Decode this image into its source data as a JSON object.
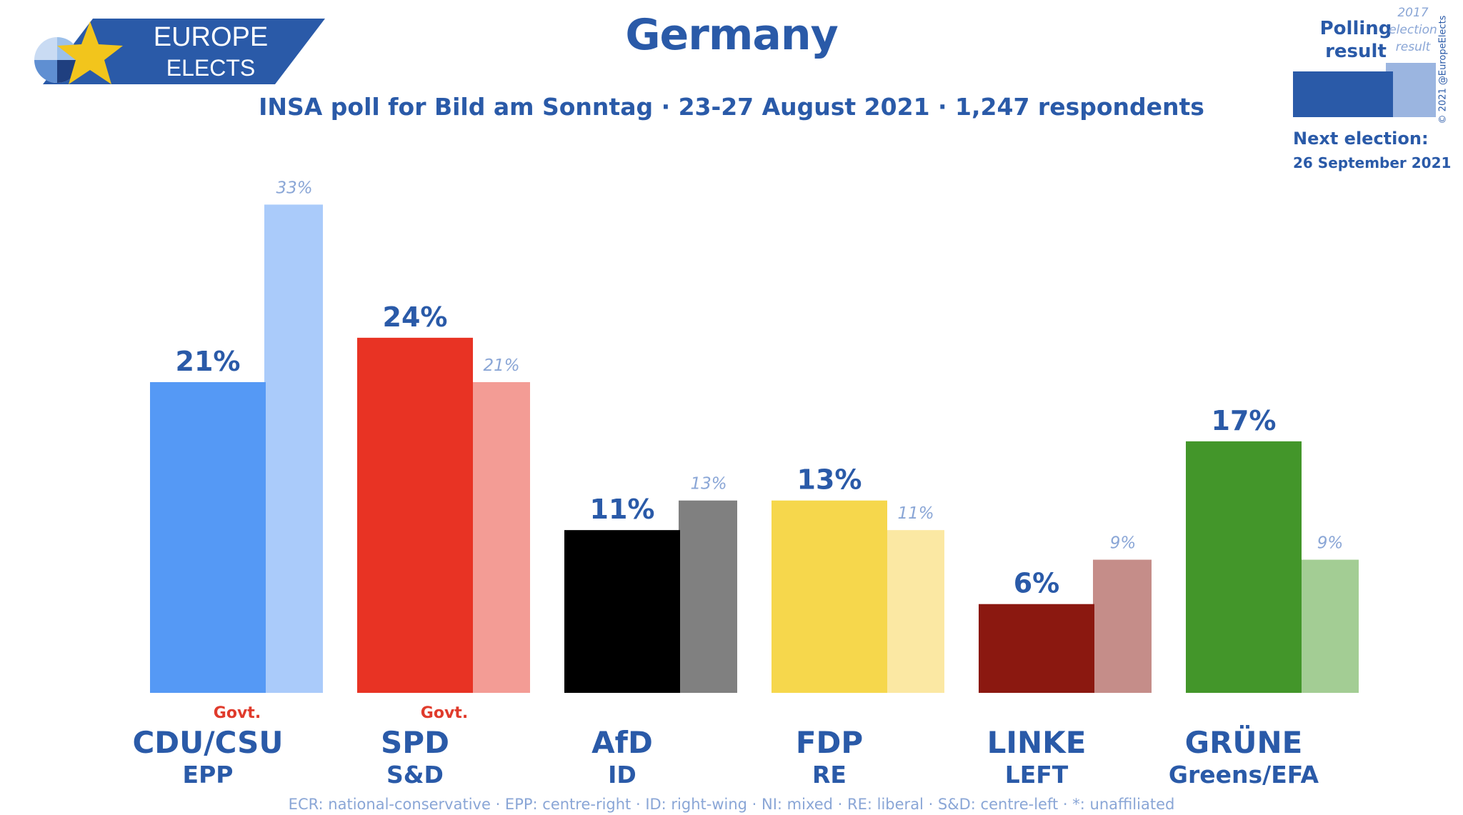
{
  "logo": {
    "line1": "EUROPE",
    "line2": "ELECTS"
  },
  "title": "Germany",
  "subtitle": "INSA poll for Bild am Sonntag · 23-27 August 2021 · 1,247 respondents",
  "legend": {
    "polling_label": "Polling result",
    "previous_label": "2017 election result",
    "copyright": "© 2021 @EuropeElects",
    "next_election_label": "Next election:",
    "next_election_date": "26 September 2021"
  },
  "colors": {
    "brand": "#2a5aa8",
    "prev_label": "#8aa6d6",
    "govt": "#e03b2c"
  },
  "chart_data": {
    "type": "bar",
    "title": "Germany",
    "xlabel": "",
    "ylabel": "",
    "ylim": [
      0,
      35
    ],
    "grid": false,
    "legend": "top-right",
    "categories": [
      "CDU/CSU",
      "SPD",
      "AfD",
      "FDP",
      "LINKE",
      "GRÜNE"
    ],
    "groups": [
      "EPP",
      "S&D",
      "ID",
      "RE",
      "LEFT",
      "Greens/EFA"
    ],
    "govt": [
      true,
      true,
      false,
      false,
      false,
      false
    ],
    "govt_label": "Govt.",
    "series": [
      {
        "name": "Polling result",
        "values": [
          21,
          24,
          11,
          13,
          6,
          17
        ],
        "labels": [
          "21%",
          "24%",
          "11%",
          "13%",
          "6%",
          "17%"
        ],
        "colors": [
          "#5599f5",
          "#e83324",
          "#000000",
          "#f6d74c",
          "#8b1810",
          "#43962a"
        ]
      },
      {
        "name": "2017 election result",
        "values": [
          33,
          21,
          13,
          11,
          9,
          9
        ],
        "labels": [
          "33%",
          "21%",
          "13%",
          "11%",
          "9%",
          "9%"
        ],
        "colors": [
          "#aacbfa",
          "#f39c95",
          "#808080",
          "#fbe8a3",
          "#c58d89",
          "#a3cd94"
        ]
      }
    ]
  },
  "footnote": "ECR: national-conservative · EPP: centre-right · ID: right-wing · NI: mixed · RE: liberal · S&D: centre-left · *: unaffiliated"
}
